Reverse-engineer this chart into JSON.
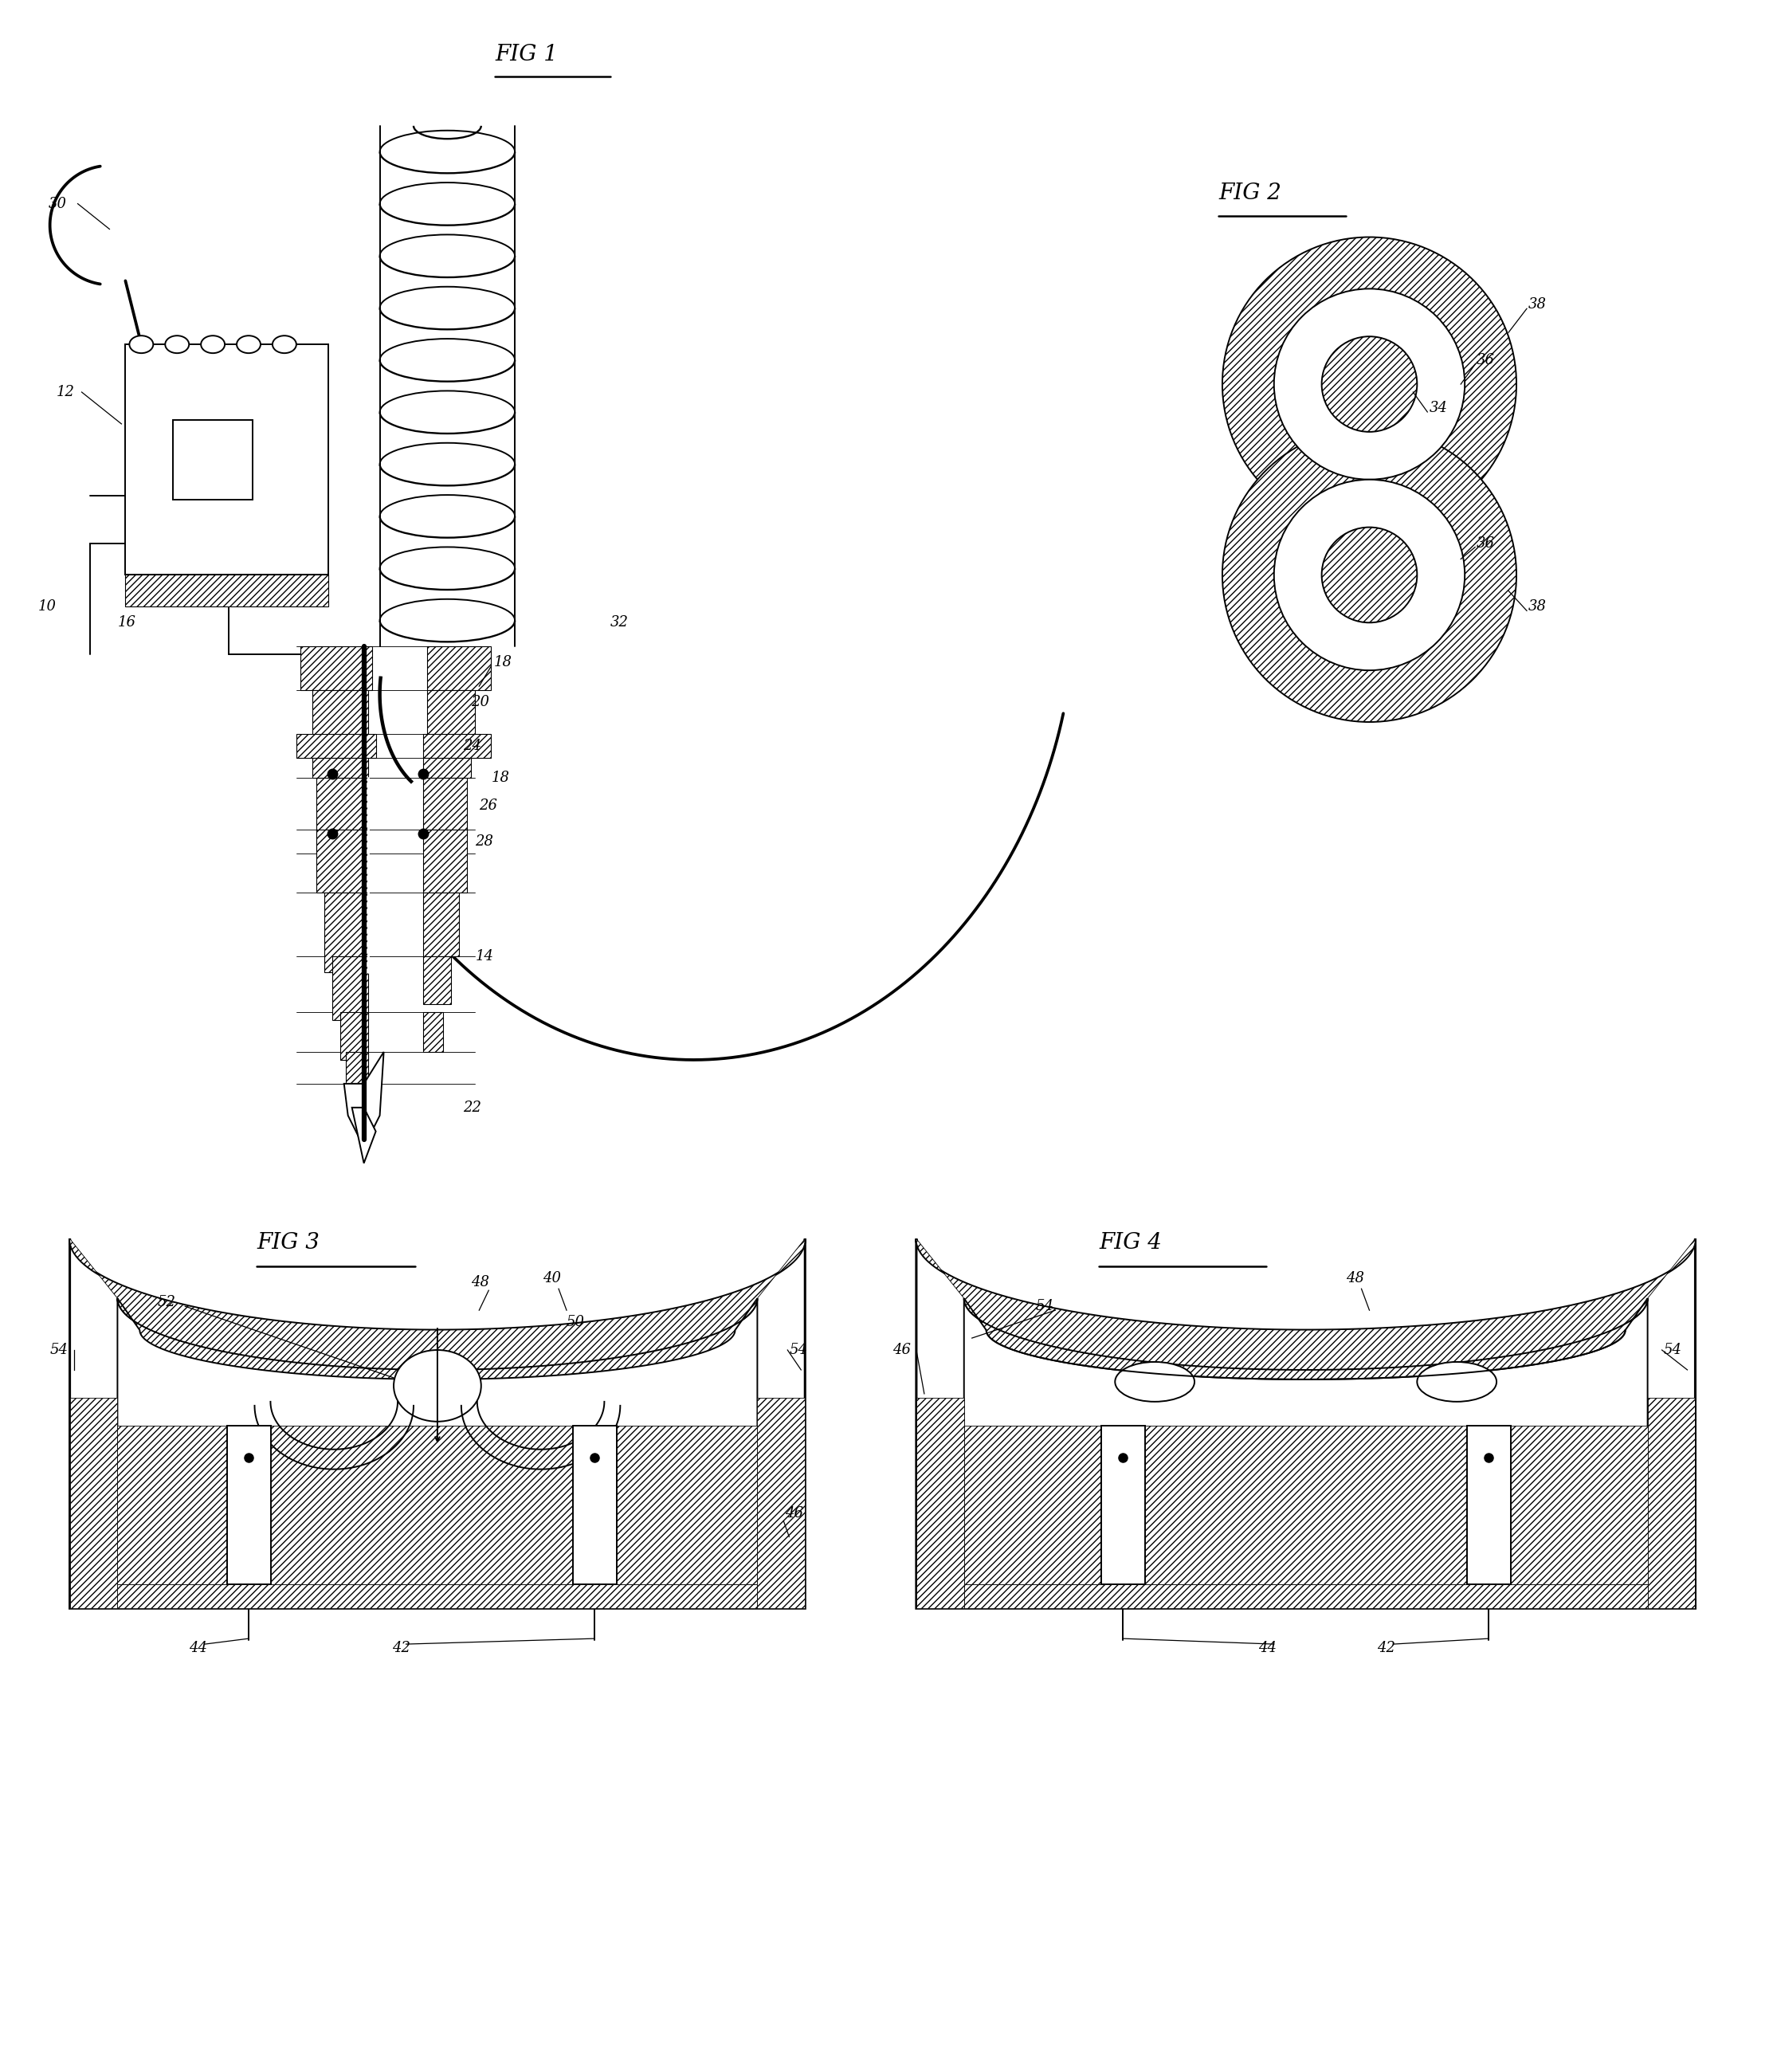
{
  "background_color": "#ffffff",
  "line_color": "#000000",
  "fig1_title": "FIG 1",
  "fig2_title": "FIG 2",
  "fig3_title": "FIG 3",
  "fig4_title": "FIG 4",
  "lw": 1.4,
  "lw_thick": 2.2,
  "lw_thin": 0.9,
  "hatch_lw": 0.5,
  "fontsize_label": 13,
  "fontsize_title": 20
}
